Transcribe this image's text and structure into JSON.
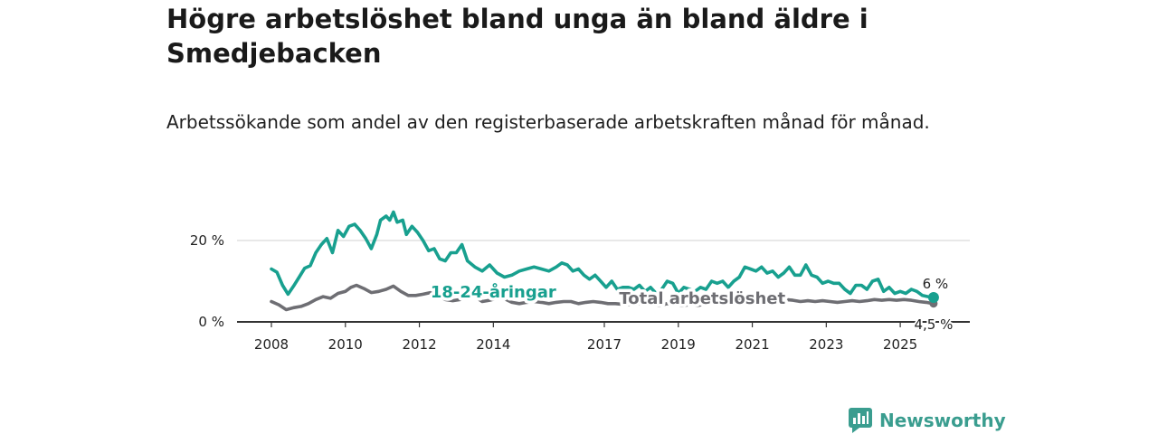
{
  "title": "Högre arbetslöshet bland unga än bland äldre i Smedjebacken",
  "subtitle": "Arbetssökande som andel av den registerbaserade arbetskraften månad för månad.",
  "brand": {
    "name": "Newsworthy",
    "logo_icon": "newsworthy-logo-icon",
    "color": "#3a9d8f"
  },
  "chart_data": {
    "type": "line",
    "title": "Högre arbetslöshet bland unga än bland äldre i Smedjebacken",
    "xlabel": "",
    "ylabel": "",
    "ylim": [
      0,
      30
    ],
    "xlim": [
      2008.0,
      2026.0
    ],
    "grid": true,
    "yticks": [
      {
        "value": 0,
        "label": "0 %"
      },
      {
        "value": 20,
        "label": "20 %"
      }
    ],
    "xticks": [
      {
        "value": 2008,
        "label": "2008"
      },
      {
        "value": 2010,
        "label": "2010"
      },
      {
        "value": 2012,
        "label": "2012"
      },
      {
        "value": 2014,
        "label": "2014"
      },
      {
        "value": 2017,
        "label": "2017"
      },
      {
        "value": 2019,
        "label": "2019"
      },
      {
        "value": 2021,
        "label": "2021"
      },
      {
        "value": 2023,
        "label": "2023"
      },
      {
        "value": 2025,
        "label": "2025"
      }
    ],
    "series": [
      {
        "name": "18-24-åringar",
        "color": "#18a08f",
        "end_label": "6 %",
        "points": [
          [
            2008.0,
            13.0
          ],
          [
            2008.15,
            12.2
          ],
          [
            2008.3,
            9.0
          ],
          [
            2008.45,
            6.8
          ],
          [
            2008.6,
            8.8
          ],
          [
            2008.75,
            11.0
          ],
          [
            2008.9,
            13.2
          ],
          [
            2009.05,
            13.8
          ],
          [
            2009.2,
            17.0
          ],
          [
            2009.35,
            19.0
          ],
          [
            2009.5,
            20.5
          ],
          [
            2009.65,
            17.0
          ],
          [
            2009.8,
            22.5
          ],
          [
            2009.95,
            21.0
          ],
          [
            2010.1,
            23.5
          ],
          [
            2010.25,
            24.0
          ],
          [
            2010.4,
            22.5
          ],
          [
            2010.55,
            20.5
          ],
          [
            2010.7,
            18.0
          ],
          [
            2010.85,
            21.5
          ],
          [
            2010.95,
            25.0
          ],
          [
            2011.1,
            26.0
          ],
          [
            2011.2,
            25.0
          ],
          [
            2011.3,
            27.0
          ],
          [
            2011.4,
            24.5
          ],
          [
            2011.55,
            25.0
          ],
          [
            2011.65,
            21.5
          ],
          [
            2011.8,
            23.5
          ],
          [
            2011.95,
            22.0
          ],
          [
            2012.1,
            20.0
          ],
          [
            2012.25,
            17.5
          ],
          [
            2012.4,
            18.0
          ],
          [
            2012.55,
            15.5
          ],
          [
            2012.7,
            15.0
          ],
          [
            2012.85,
            17.0
          ],
          [
            2013.0,
            17.0
          ],
          [
            2013.15,
            19.0
          ],
          [
            2013.3,
            15.0
          ],
          [
            2013.5,
            13.5
          ],
          [
            2013.7,
            12.5
          ],
          [
            2013.9,
            14.0
          ],
          [
            2014.1,
            12.0
          ],
          [
            2014.3,
            11.0
          ],
          [
            2014.5,
            11.5
          ],
          [
            2014.7,
            12.5
          ],
          [
            2014.9,
            13.0
          ],
          [
            2015.1,
            13.5
          ],
          [
            2015.3,
            13.0
          ],
          [
            2015.5,
            12.5
          ],
          [
            2015.7,
            13.5
          ],
          [
            2015.85,
            14.5
          ],
          [
            2016.0,
            14.0
          ],
          [
            2016.15,
            12.5
          ],
          [
            2016.3,
            13.0
          ],
          [
            2016.45,
            11.5
          ],
          [
            2016.6,
            10.5
          ],
          [
            2016.75,
            11.5
          ],
          [
            2016.9,
            10.0
          ],
          [
            2017.05,
            8.5
          ],
          [
            2017.2,
            10.0
          ],
          [
            2017.35,
            8.0
          ],
          [
            2017.5,
            8.5
          ],
          [
            2017.65,
            8.5
          ],
          [
            2017.8,
            8.0
          ],
          [
            2017.95,
            9.0
          ],
          [
            2018.1,
            7.5
          ],
          [
            2018.25,
            8.5
          ],
          [
            2018.4,
            7.0
          ],
          [
            2018.55,
            8.0
          ],
          [
            2018.7,
            10.0
          ],
          [
            2018.85,
            9.5
          ],
          [
            2019.0,
            7.0
          ],
          [
            2019.15,
            8.5
          ],
          [
            2019.3,
            8.0
          ],
          [
            2019.45,
            7.5
          ],
          [
            2019.6,
            8.5
          ],
          [
            2019.75,
            8.0
          ],
          [
            2019.9,
            10.0
          ],
          [
            2020.05,
            9.5
          ],
          [
            2020.2,
            10.0
          ],
          [
            2020.35,
            8.5
          ],
          [
            2020.5,
            10.0
          ],
          [
            2020.65,
            11.0
          ],
          [
            2020.8,
            13.5
          ],
          [
            2020.95,
            13.0
          ],
          [
            2021.1,
            12.5
          ],
          [
            2021.25,
            13.5
          ],
          [
            2021.4,
            12.0
          ],
          [
            2021.55,
            12.5
          ],
          [
            2021.7,
            11.0
          ],
          [
            2021.85,
            12.0
          ],
          [
            2022.0,
            13.5
          ],
          [
            2022.15,
            11.5
          ],
          [
            2022.3,
            11.5
          ],
          [
            2022.45,
            14.0
          ],
          [
            2022.6,
            11.5
          ],
          [
            2022.75,
            11.0
          ],
          [
            2022.9,
            9.5
          ],
          [
            2023.05,
            10.0
          ],
          [
            2023.2,
            9.5
          ],
          [
            2023.35,
            9.5
          ],
          [
            2023.5,
            8.0
          ],
          [
            2023.65,
            7.0
          ],
          [
            2023.8,
            9.0
          ],
          [
            2023.95,
            9.0
          ],
          [
            2024.1,
            8.0
          ],
          [
            2024.25,
            10.0
          ],
          [
            2024.4,
            10.5
          ],
          [
            2024.55,
            7.5
          ],
          [
            2024.7,
            8.5
          ],
          [
            2024.85,
            7.0
          ],
          [
            2025.0,
            7.5
          ],
          [
            2025.15,
            7.0
          ],
          [
            2025.3,
            8.0
          ],
          [
            2025.45,
            7.5
          ],
          [
            2025.6,
            6.5
          ],
          [
            2025.75,
            6.2
          ],
          [
            2025.9,
            6.0
          ]
        ]
      },
      {
        "name": "Total arbetslöshet",
        "color": "#6e6e73",
        "end_label": "4,5 %",
        "points": [
          [
            2008.0,
            5.0
          ],
          [
            2008.2,
            4.2
          ],
          [
            2008.4,
            3.0
          ],
          [
            2008.6,
            3.5
          ],
          [
            2008.8,
            3.8
          ],
          [
            2009.0,
            4.5
          ],
          [
            2009.2,
            5.5
          ],
          [
            2009.4,
            6.2
          ],
          [
            2009.6,
            5.8
          ],
          [
            2009.8,
            7.0
          ],
          [
            2010.0,
            7.5
          ],
          [
            2010.15,
            8.5
          ],
          [
            2010.3,
            9.0
          ],
          [
            2010.5,
            8.2
          ],
          [
            2010.7,
            7.2
          ],
          [
            2010.9,
            7.5
          ],
          [
            2011.1,
            8.0
          ],
          [
            2011.3,
            8.8
          ],
          [
            2011.5,
            7.5
          ],
          [
            2011.7,
            6.5
          ],
          [
            2011.9,
            6.5
          ],
          [
            2012.1,
            6.8
          ],
          [
            2012.3,
            7.2
          ],
          [
            2012.5,
            6.5
          ],
          [
            2012.7,
            5.5
          ],
          [
            2012.9,
            5.2
          ],
          [
            2013.1,
            5.5
          ],
          [
            2013.3,
            6.5
          ],
          [
            2013.5,
            6.2
          ],
          [
            2013.7,
            5.0
          ],
          [
            2013.9,
            5.3
          ],
          [
            2014.1,
            5.8
          ],
          [
            2014.3,
            5.7
          ],
          [
            2014.5,
            4.8
          ],
          [
            2014.7,
            4.5
          ],
          [
            2014.9,
            4.8
          ],
          [
            2015.1,
            5.0
          ],
          [
            2015.3,
            4.8
          ],
          [
            2015.5,
            4.5
          ],
          [
            2015.7,
            4.8
          ],
          [
            2015.9,
            5.0
          ],
          [
            2016.1,
            5.0
          ],
          [
            2016.3,
            4.5
          ],
          [
            2016.5,
            4.8
          ],
          [
            2016.7,
            5.0
          ],
          [
            2016.9,
            4.8
          ],
          [
            2017.1,
            4.5
          ],
          [
            2017.3,
            4.5
          ],
          [
            2017.5,
            4.3
          ],
          [
            2017.7,
            4.2
          ],
          [
            2017.9,
            4.5
          ],
          [
            2018.1,
            4.2
          ],
          [
            2018.3,
            4.3
          ],
          [
            2018.5,
            4.0
          ],
          [
            2018.7,
            4.5
          ],
          [
            2018.9,
            4.3
          ],
          [
            2019.1,
            4.0
          ],
          [
            2019.3,
            4.2
          ],
          [
            2019.5,
            4.0
          ],
          [
            2019.7,
            4.3
          ],
          [
            2019.9,
            4.5
          ],
          [
            2020.1,
            5.0
          ],
          [
            2020.3,
            5.2
          ],
          [
            2020.5,
            5.5
          ],
          [
            2020.7,
            6.0
          ],
          [
            2020.9,
            5.8
          ],
          [
            2021.1,
            5.5
          ],
          [
            2021.3,
            5.8
          ],
          [
            2021.5,
            5.5
          ],
          [
            2021.7,
            5.3
          ],
          [
            2021.9,
            5.5
          ],
          [
            2022.1,
            5.3
          ],
          [
            2022.3,
            5.0
          ],
          [
            2022.5,
            5.2
          ],
          [
            2022.7,
            5.0
          ],
          [
            2022.9,
            5.2
          ],
          [
            2023.1,
            5.0
          ],
          [
            2023.3,
            4.8
          ],
          [
            2023.5,
            5.0
          ],
          [
            2023.7,
            5.2
          ],
          [
            2023.9,
            5.0
          ],
          [
            2024.1,
            5.2
          ],
          [
            2024.3,
            5.5
          ],
          [
            2024.5,
            5.3
          ],
          [
            2024.7,
            5.5
          ],
          [
            2024.9,
            5.3
          ],
          [
            2025.1,
            5.5
          ],
          [
            2025.3,
            5.3
          ],
          [
            2025.5,
            5.0
          ],
          [
            2025.7,
            4.8
          ],
          [
            2025.9,
            4.5
          ]
        ]
      }
    ]
  }
}
